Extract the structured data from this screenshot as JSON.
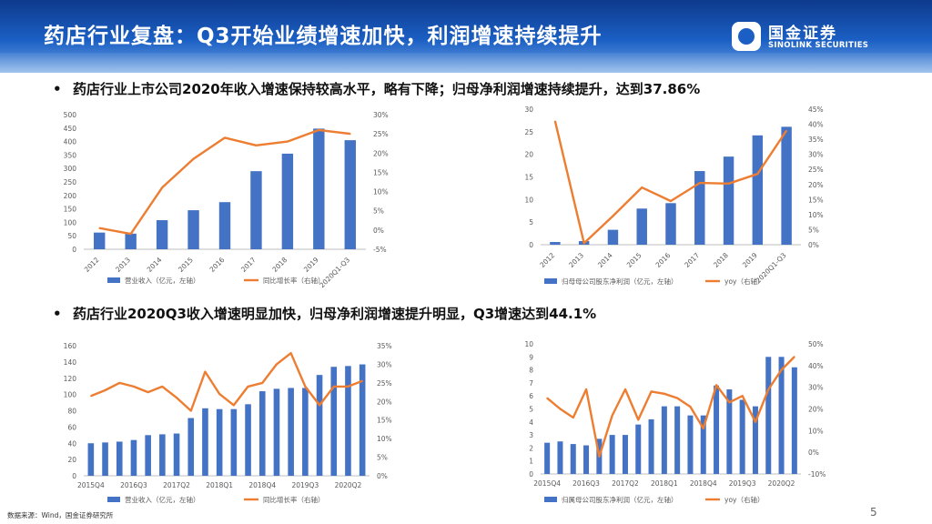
{
  "header": {
    "title": "药店行业复盘：Q3开始业绩增速加快，利润增速持续提升"
  },
  "logo": {
    "cn": "国金证券",
    "en": "SINOLINK SECURITIES"
  },
  "bullets": [
    "药店行业上市公司2020年收入增速保持较高水平，略有下降；归母净利润增速持续提升，达到37.86%",
    "药店行业2020Q3收入增速明显加快，归母净利润增速提升明显，Q3增速达到44.1%"
  ],
  "footer": {
    "source": "数据来源：Wind，国金证券研究所",
    "page": "5"
  },
  "colors": {
    "bar": "#4472c4",
    "line": "#ed7d31"
  },
  "chart_data": [
    {
      "type": "bar+line",
      "categories": [
        "2012",
        "2013",
        "2014",
        "2015",
        "2016",
        "2017",
        "2018",
        "2019",
        "2020Q1-Q3"
      ],
      "series": [
        {
          "name": "营业收入（亿元，左轴）",
          "axis": "left",
          "kind": "bar",
          "values": [
            62,
            58,
            108,
            145,
            175,
            290,
            355,
            448,
            405
          ]
        },
        {
          "name": "同比增长率（右轴）",
          "axis": "right",
          "kind": "line",
          "values": [
            0.5,
            -1.0,
            11.0,
            18.5,
            24.0,
            22.0,
            23.0,
            26.0,
            25.0
          ]
        }
      ],
      "ylim_left": [
        0,
        500
      ],
      "yticks_left": [
        0,
        50,
        100,
        150,
        200,
        250,
        300,
        350,
        400,
        450,
        500
      ],
      "ylim_right": [
        -5,
        30
      ],
      "yticks_right": [
        -5,
        0,
        5,
        10,
        15,
        20,
        25,
        30
      ],
      "ytick_labels_right": [
        "-5%",
        "0%",
        "5%",
        "10%",
        "15%",
        "20%",
        "25%",
        "30%"
      ],
      "legend_position": "bottom"
    },
    {
      "type": "bar+line",
      "categories": [
        "2012",
        "2013",
        "2014",
        "2015",
        "2016",
        "2017",
        "2018",
        "2019",
        "2020Q1-Q3"
      ],
      "series": [
        {
          "name": "归母母公司股东净利润（亿元，左轴）",
          "axis": "left",
          "kind": "bar",
          "values": [
            0.6,
            0.8,
            3.3,
            8.0,
            9.2,
            16.3,
            19.5,
            24.2,
            26.1
          ]
        },
        {
          "name": "yoy（右轴）",
          "axis": "right",
          "kind": "line",
          "values": [
            41.0,
            0.5,
            9.5,
            19.0,
            14.5,
            20.5,
            20.3,
            23.5,
            37.86
          ]
        }
      ],
      "ylim_left": [
        0,
        30
      ],
      "yticks_left": [
        0,
        5,
        10,
        15,
        20,
        25,
        30
      ],
      "ylim_right": [
        0,
        45
      ],
      "yticks_right": [
        0,
        5,
        10,
        15,
        20,
        25,
        30,
        35,
        40,
        45
      ],
      "ytick_labels_right": [
        "0%",
        "5%",
        "10%",
        "15%",
        "20%",
        "25%",
        "30%",
        "35%",
        "40%",
        "45%"
      ],
      "legend_position": "bottom"
    },
    {
      "type": "bar+line",
      "categories": [
        "2015Q4",
        "2016Q1",
        "2016Q2",
        "2016Q3",
        "2016Q4",
        "2017Q1",
        "2017Q2",
        "2017Q3",
        "2017Q4",
        "2018Q1",
        "2018Q2",
        "2018Q3",
        "2018Q4",
        "2019Q1",
        "2019Q2",
        "2019Q3",
        "2019Q4",
        "2020Q1",
        "2020Q2",
        "2020Q3"
      ],
      "tick_labels": [
        "2015Q4",
        "2016Q3",
        "2017Q2",
        "2018Q1",
        "2018Q4",
        "2019Q3",
        "2020Q2"
      ],
      "series": [
        {
          "name": "营业收入（亿元，左轴）",
          "axis": "left",
          "kind": "bar",
          "values": [
            40,
            41,
            42,
            44,
            50,
            51,
            52,
            71,
            83,
            82,
            82,
            88,
            104,
            107,
            108,
            108,
            124,
            134,
            135,
            137
          ]
        },
        {
          "name": "同比增长率（右轴）",
          "axis": "right",
          "kind": "line",
          "values": [
            21.5,
            23,
            25,
            24,
            22.5,
            24,
            21,
            17.5,
            28,
            22,
            19,
            24,
            25,
            30,
            33,
            24,
            19,
            24,
            24,
            25.5
          ]
        }
      ],
      "ylim_left": [
        0,
        160
      ],
      "yticks_left": [
        0,
        20,
        40,
        60,
        80,
        100,
        120,
        140,
        160
      ],
      "ylim_right": [
        0,
        35
      ],
      "yticks_right": [
        0,
        5,
        10,
        15,
        20,
        25,
        30,
        35
      ],
      "ytick_labels_right": [
        "0%",
        "5%",
        "10%",
        "15%",
        "20%",
        "25%",
        "30%",
        "35%"
      ],
      "legend_position": "bottom"
    },
    {
      "type": "bar+line",
      "categories": [
        "2015Q4",
        "2016Q1",
        "2016Q2",
        "2016Q3",
        "2016Q4",
        "2017Q1",
        "2017Q2",
        "2017Q3",
        "2017Q4",
        "2018Q1",
        "2018Q2",
        "2018Q3",
        "2018Q4",
        "2019Q1",
        "2019Q2",
        "2019Q3",
        "2019Q4",
        "2020Q1",
        "2020Q2",
        "2020Q3"
      ],
      "tick_labels": [
        "2015Q4",
        "2016Q3",
        "2017Q2",
        "2018Q1",
        "2018Q4",
        "2019Q3",
        "2020Q2"
      ],
      "series": [
        {
          "name": "归属母公司股东净利润（亿元，左轴）",
          "axis": "left",
          "kind": "bar",
          "values": [
            2.4,
            2.5,
            2.3,
            2.2,
            2.7,
            3.0,
            3.0,
            3.8,
            4.2,
            5.2,
            5.2,
            4.5,
            4.5,
            6.8,
            6.5,
            5.7,
            5.2,
            9.0,
            9.0,
            8.2
          ]
        },
        {
          "name": "yoy（右轴）",
          "axis": "right",
          "kind": "line",
          "values": [
            25,
            20,
            16,
            29,
            -2,
            17,
            29,
            15,
            28,
            27,
            25,
            21,
            11,
            31,
            23,
            26,
            14,
            29,
            38,
            44.1
          ]
        }
      ],
      "ylim_left": [
        0,
        10
      ],
      "yticks_left": [
        0,
        1,
        2,
        3,
        4,
        5,
        6,
        7,
        8,
        9,
        10
      ],
      "ylim_right": [
        -10,
        50
      ],
      "yticks_right": [
        -10,
        0,
        10,
        20,
        30,
        40,
        50
      ],
      "ytick_labels_right": [
        "-10%",
        "0%",
        "10%",
        "20%",
        "30%",
        "40%",
        "50%"
      ],
      "legend_position": "bottom"
    }
  ]
}
